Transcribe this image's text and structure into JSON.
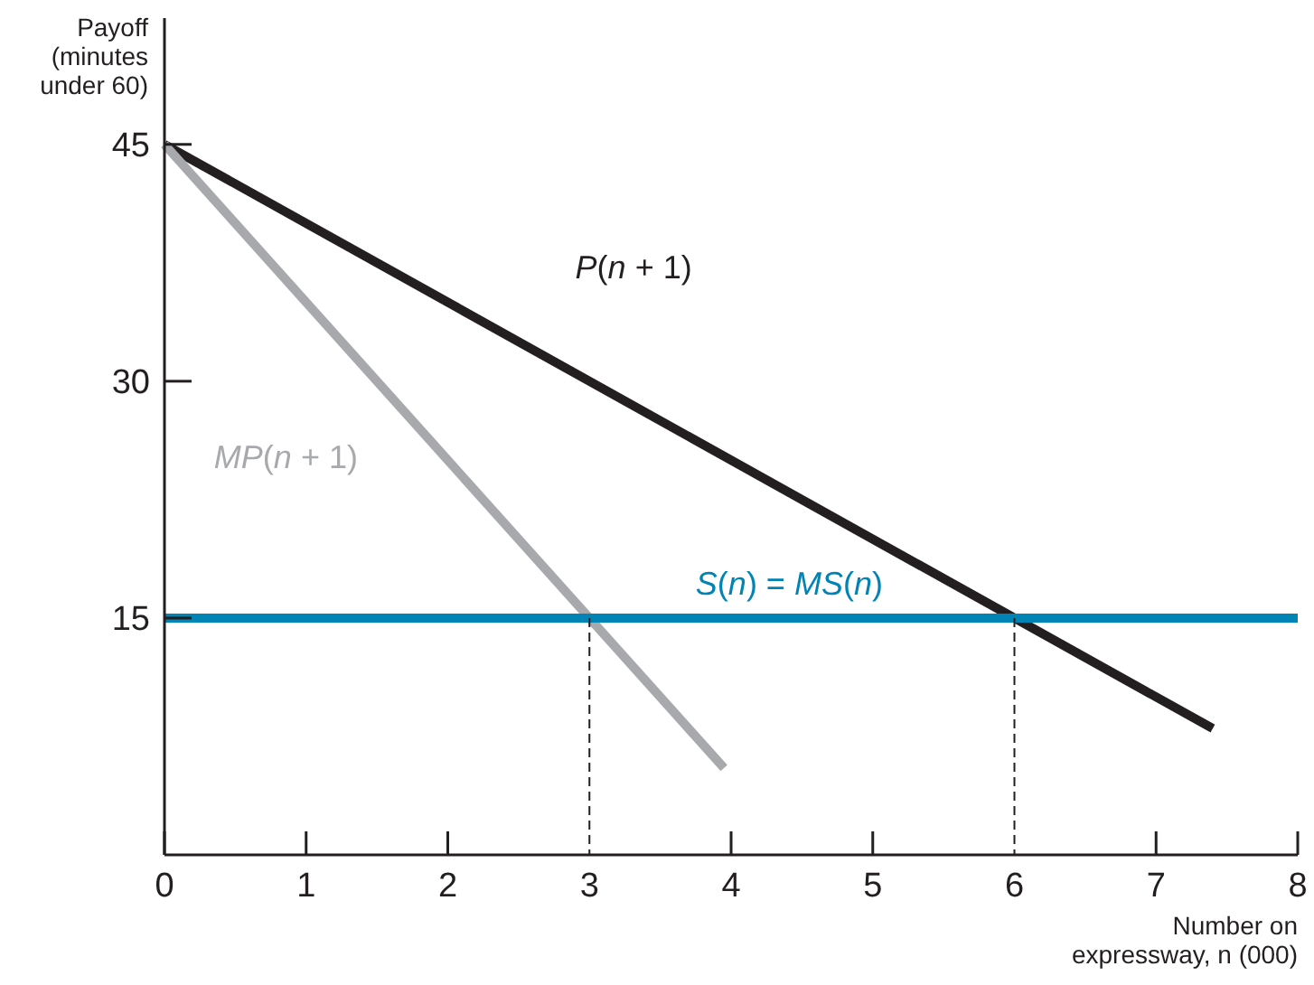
{
  "chart_data": {
    "type": "line",
    "xlabel": "Number on\nexpressway, n (000)",
    "ylabel": "Payoff\n(minutes\nunder 60)",
    "xlim": [
      0,
      8
    ],
    "ylim": [
      0,
      53
    ],
    "xticks": [
      0,
      1,
      2,
      3,
      4,
      5,
      6,
      7,
      8
    ],
    "yticks": [
      15,
      30,
      45
    ],
    "grid": false,
    "marker": "none",
    "series": [
      {
        "name": "P(n + 1)",
        "color": "#231f20",
        "x": [
          0,
          7.4
        ],
        "values": [
          45,
          8
        ]
      },
      {
        "name": "MP(n + 1)",
        "color": "#a7a9ac",
        "x": [
          0,
          3.95
        ],
        "values": [
          45,
          5.5
        ]
      },
      {
        "name": "S(n) = MS(n)",
        "color": "#0083b5",
        "x": [
          0,
          8
        ],
        "values": [
          15,
          15
        ]
      },
      {
        "color": "#231f20",
        "x": [
          3,
          3
        ],
        "values": [
          0,
          15
        ],
        "line_style": "dashed"
      },
      {
        "color": "#231f20",
        "x": [
          6,
          6
        ],
        "values": [
          0,
          15
        ],
        "line_style": "dashed"
      }
    ]
  }
}
